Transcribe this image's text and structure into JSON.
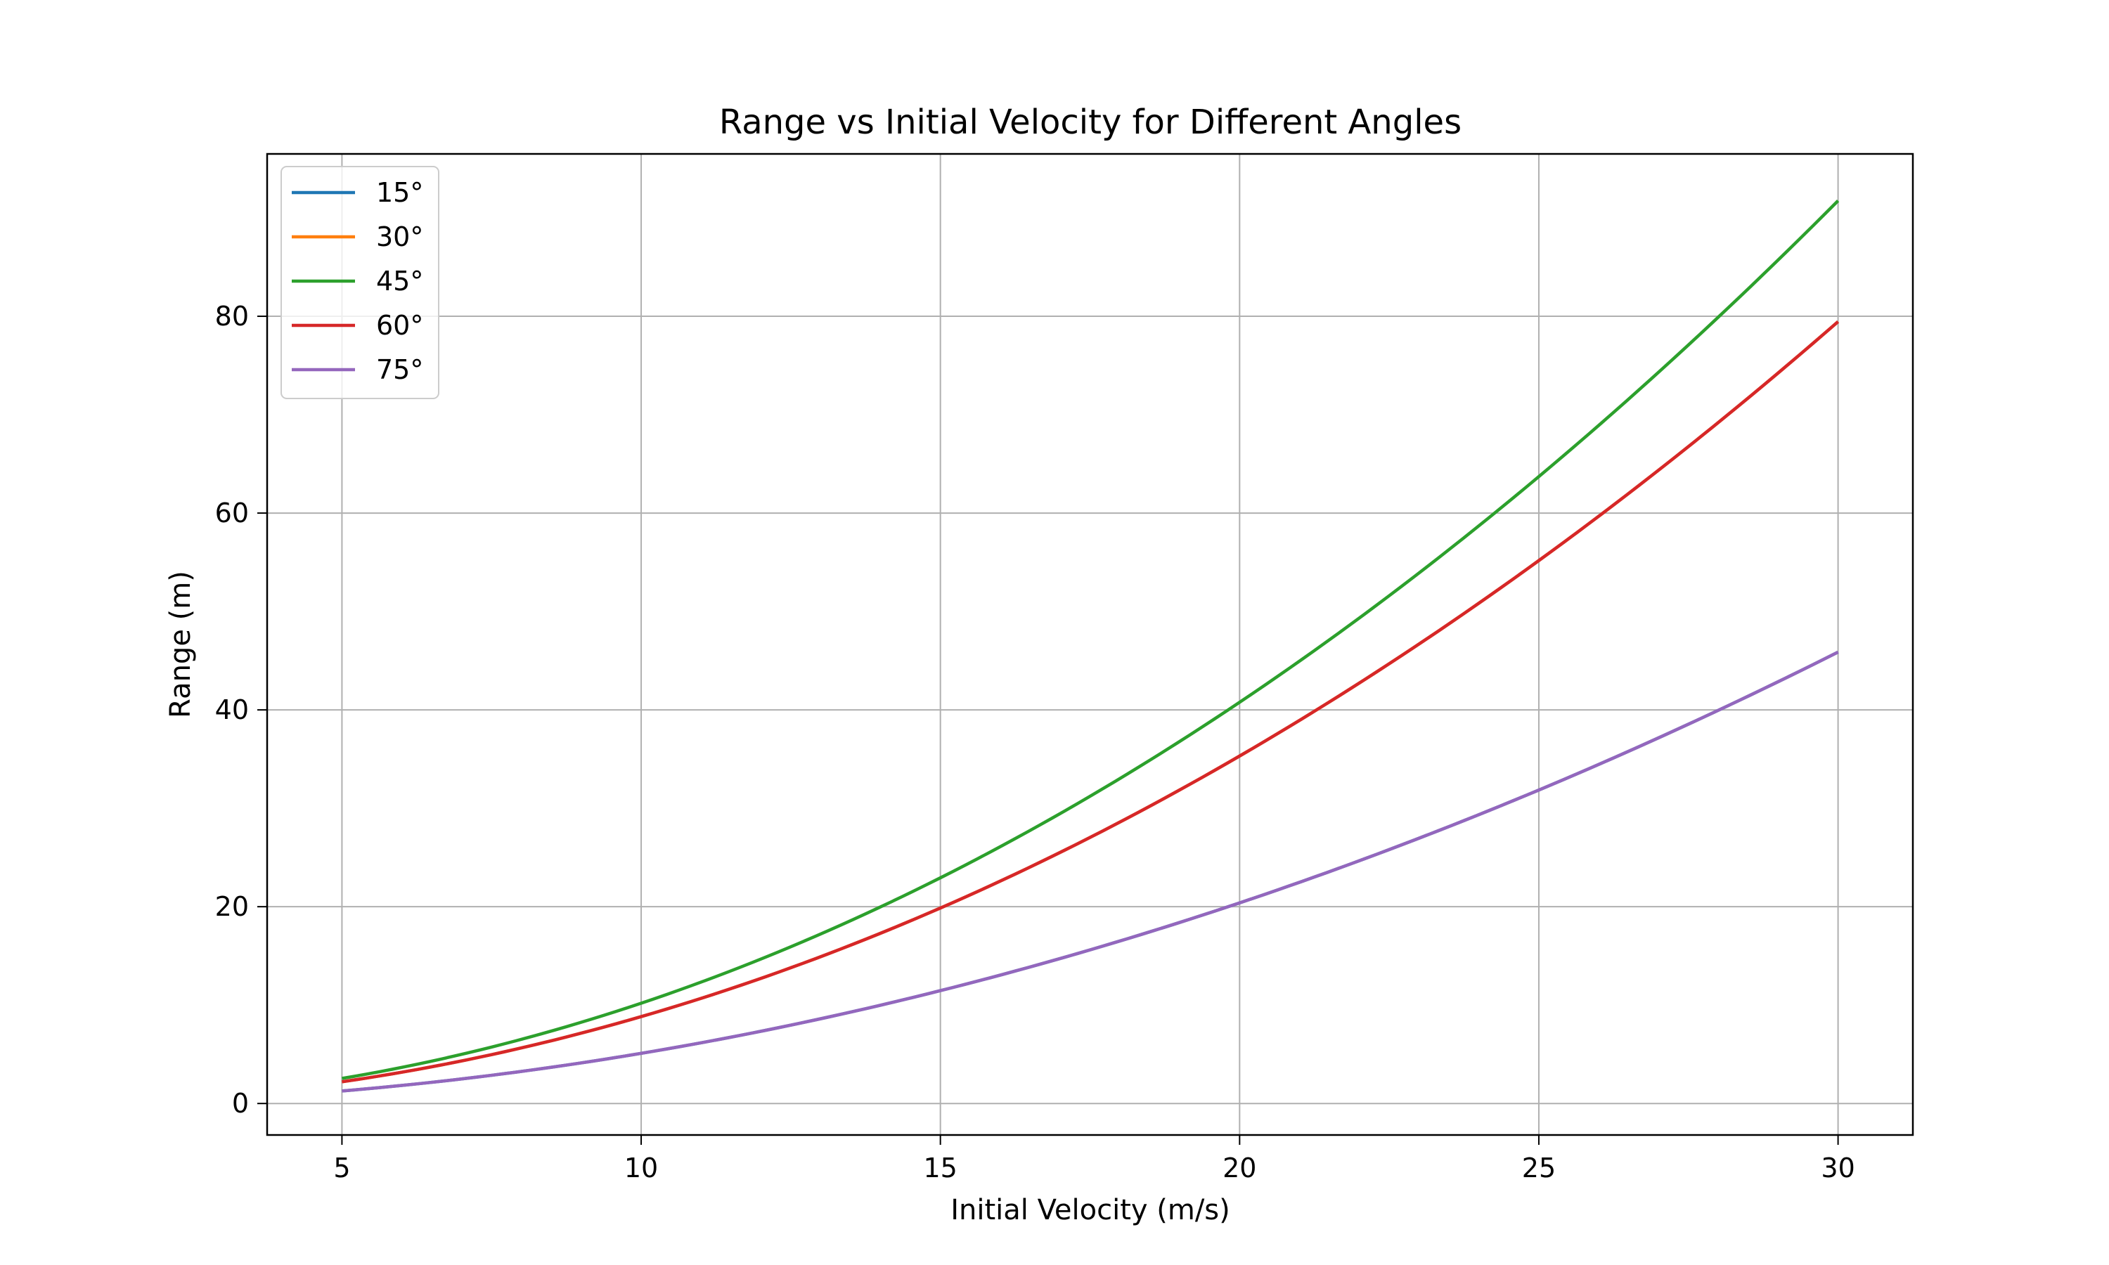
{
  "chart_data": {
    "type": "line",
    "title": "Range vs Initial Velocity for Different Angles",
    "xlabel": "Initial Velocity (m/s)",
    "ylabel": "Range (m)",
    "xlim": [
      3.75,
      31.25
    ],
    "ylim": [
      -3.2,
      96.5
    ],
    "xticks": [
      5,
      10,
      15,
      20,
      25,
      30
    ],
    "yticks": [
      0,
      20,
      40,
      60,
      80
    ],
    "grid": true,
    "legend_position": "upper-left",
    "x": [
      5,
      7.5,
      10,
      12.5,
      15,
      17.5,
      20,
      22.5,
      25,
      27.5,
      30
    ],
    "series": [
      {
        "name": "15°",
        "color": "#1f77b4",
        "values": [
          1.27,
          2.87,
          5.1,
          7.96,
          11.47,
          15.61,
          20.39,
          25.8,
          31.86,
          38.55,
          45.87
        ]
      },
      {
        "name": "30°",
        "color": "#ff7f0e",
        "values": [
          2.21,
          4.97,
          8.83,
          13.8,
          19.87,
          27.04,
          35.31,
          44.69,
          55.18,
          66.76,
          79.45
        ]
      },
      {
        "name": "45°",
        "color": "#2ca02c",
        "values": [
          2.55,
          5.73,
          10.19,
          15.93,
          22.94,
          31.22,
          40.77,
          51.61,
          63.71,
          77.09,
          91.74
        ]
      },
      {
        "name": "60°",
        "color": "#d62728",
        "values": [
          2.21,
          4.97,
          8.83,
          13.8,
          19.87,
          27.04,
          35.31,
          44.69,
          55.18,
          66.76,
          79.45
        ]
      },
      {
        "name": "75°",
        "color": "#9467bd",
        "values": [
          1.27,
          2.87,
          5.1,
          7.96,
          11.47,
          15.61,
          20.39,
          25.8,
          31.86,
          38.55,
          45.87
        ]
      }
    ]
  }
}
